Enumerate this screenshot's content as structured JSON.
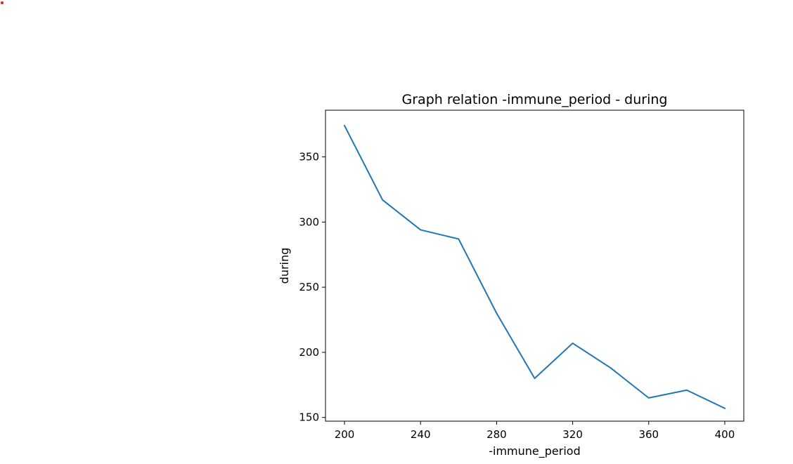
{
  "chart_data": {
    "type": "line",
    "title": "Graph relation -immune_period - during",
    "xlabel": "-immune_period",
    "ylabel": "during",
    "x": [
      200,
      220,
      240,
      260,
      280,
      300,
      320,
      340,
      360,
      380,
      400
    ],
    "series": [
      {
        "values": [
          374,
          317,
          294,
          287,
          230,
          180,
          207,
          188,
          165,
          171,
          157
        ],
        "color": "#1f77b4"
      }
    ],
    "xticks": [
      200,
      240,
      280,
      320,
      360,
      400
    ],
    "yticks": [
      150,
      200,
      250,
      300,
      350
    ],
    "xlim": [
      190,
      410
    ],
    "ylim": [
      147.15,
      385.85
    ],
    "grid": false,
    "legend": "none"
  }
}
